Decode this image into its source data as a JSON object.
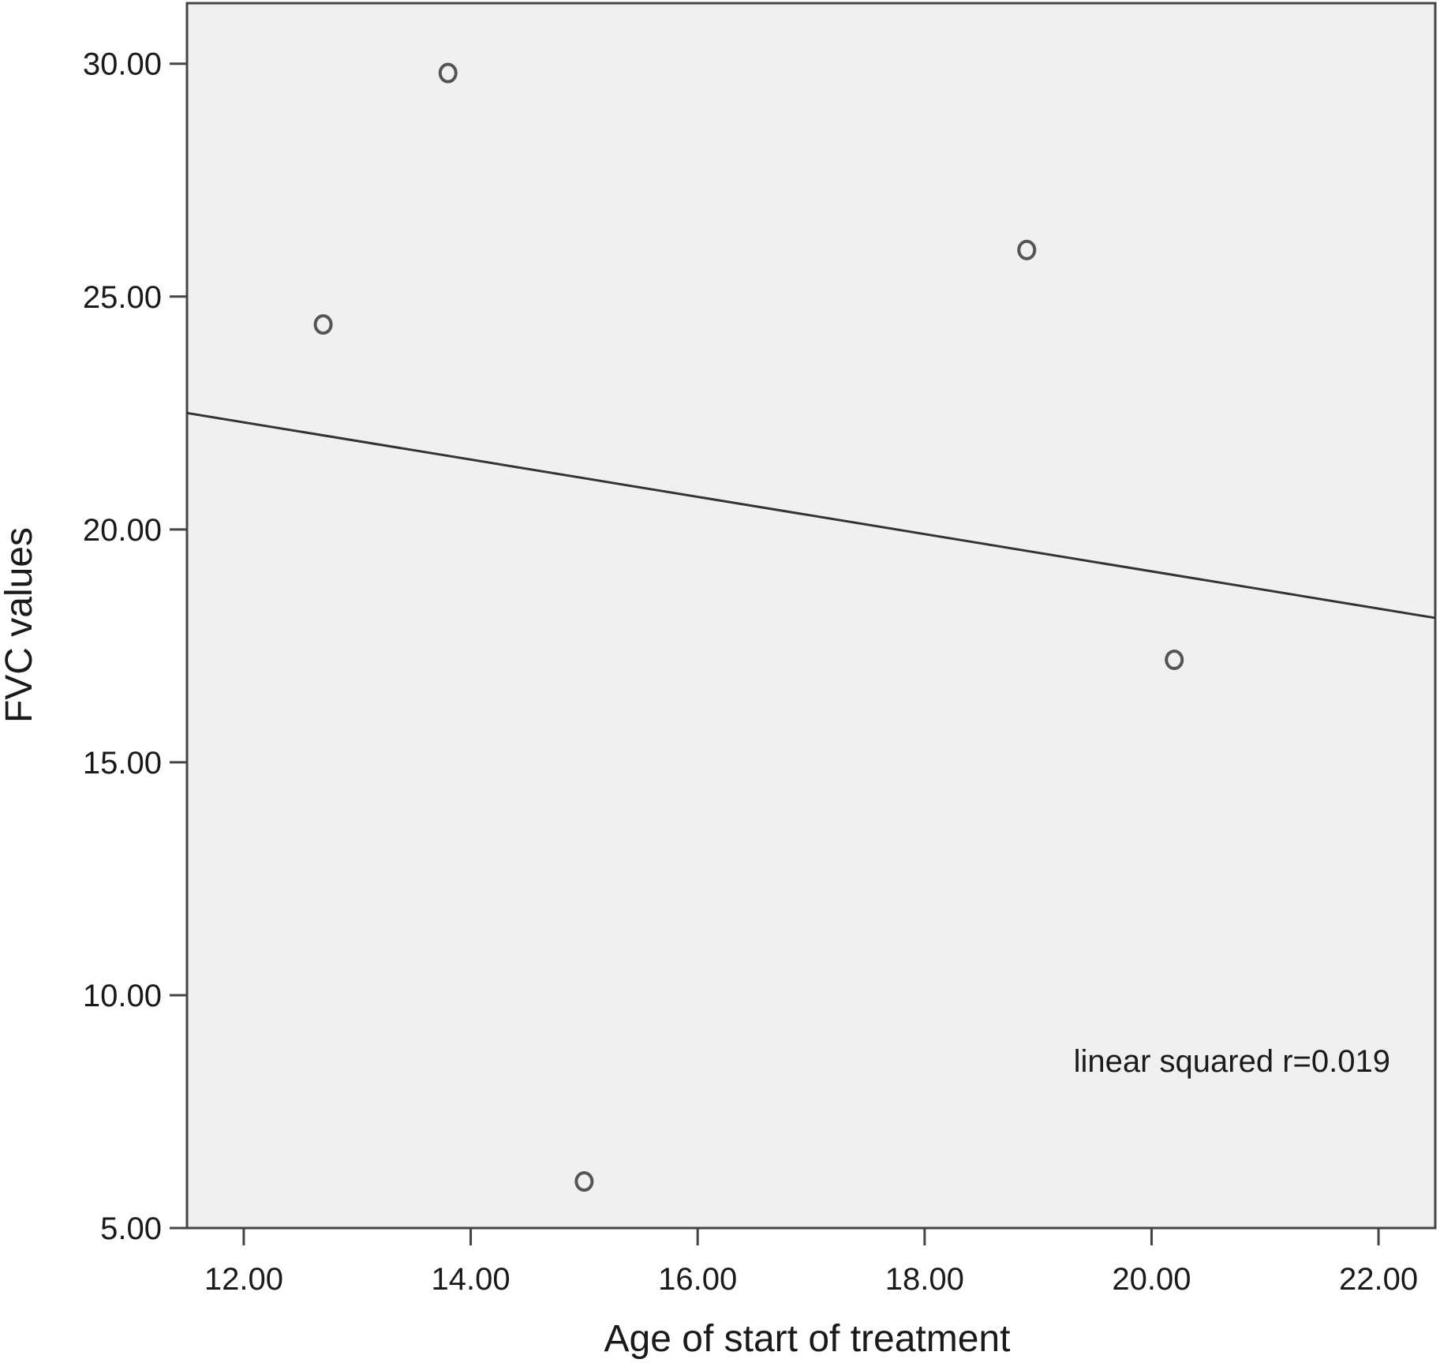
{
  "chart_data": {
    "type": "scatter",
    "title": "",
    "xlabel": "Age of start of treatment",
    "ylabel": "FVC values",
    "xlim": [
      11.5,
      22.5
    ],
    "ylim": [
      5.0,
      31.3
    ],
    "xticks": [
      12,
      14,
      16,
      18,
      20,
      22
    ],
    "xtick_labels": [
      "12.00",
      "14.00",
      "16.00",
      "18.00",
      "20.00",
      "22.00"
    ],
    "yticks": [
      5,
      10,
      15,
      20,
      25,
      30
    ],
    "ytick_labels": [
      "5.00",
      "10.00",
      "15.00",
      "20.00",
      "25.00",
      "30.00"
    ],
    "points": [
      {
        "x": 12.7,
        "y": 24.4
      },
      {
        "x": 13.8,
        "y": 29.8
      },
      {
        "x": 15.0,
        "y": 6.0
      },
      {
        "x": 18.9,
        "y": 26.0
      },
      {
        "x": 20.2,
        "y": 17.2
      }
    ],
    "fit_line": {
      "type": "linear",
      "x": [
        11.5,
        22.5
      ],
      "y": [
        22.5,
        18.1
      ]
    },
    "annotation": "linear squared r=0.019",
    "grid": false,
    "colors": {
      "background": "#f0f0f0",
      "frame": "#444444",
      "marker": "#555555",
      "line": "#333333"
    }
  }
}
